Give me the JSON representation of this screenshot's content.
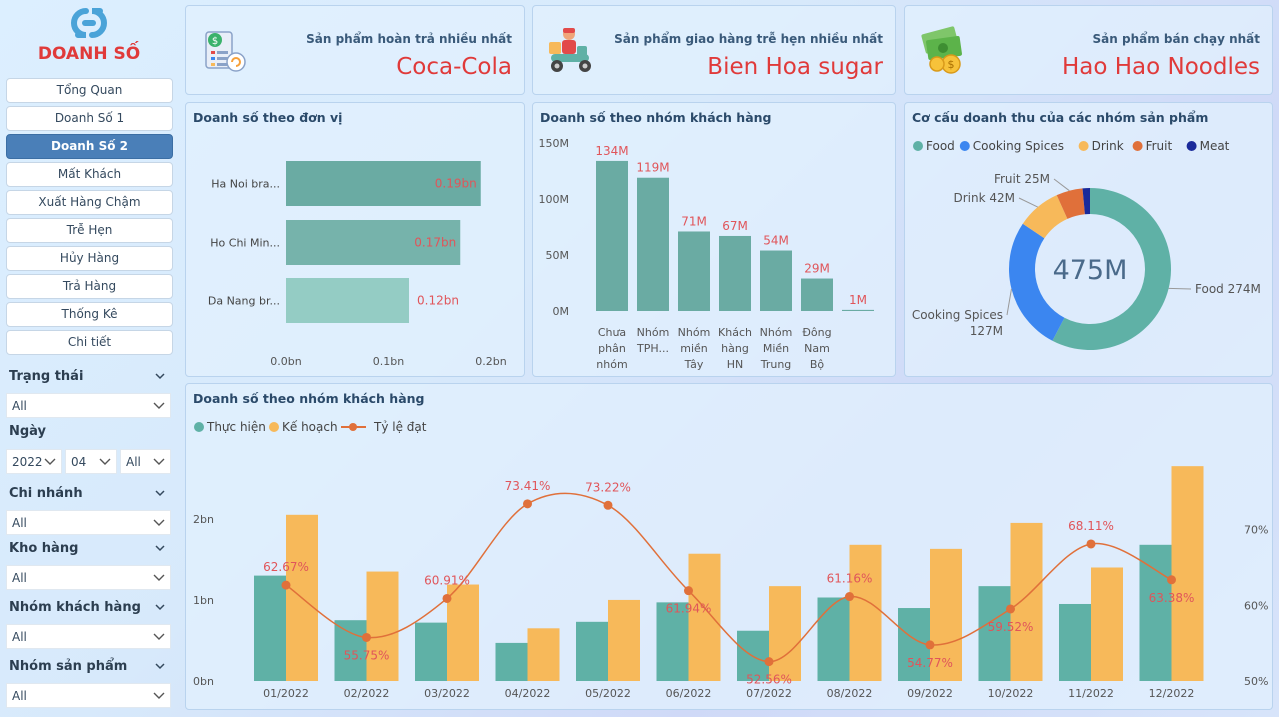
{
  "brand": "DOANH SỐ",
  "nav": [
    "Tổng Quan",
    "Doanh Số 1",
    "Doanh Số 2",
    "Mất Khách",
    "Xuất Hàng Chậm",
    "Trễ Hẹn",
    "Hủy Hàng",
    "Trả Hàng",
    "Thống Kê",
    "Chi tiết"
  ],
  "nav_active": 2,
  "filters": {
    "trang_thai": {
      "label": "Trạng thái",
      "value": "All"
    },
    "ngay": {
      "label": "Ngày",
      "year": "2022",
      "month": "04",
      "day": "All"
    },
    "chi_nhanh": {
      "label": "Chi nhánh",
      "value": "All"
    },
    "kho_hang": {
      "label": "Kho hàng",
      "value": "All"
    },
    "nhom_khach_hang": {
      "label": "Nhóm khách hàng",
      "value": "All"
    },
    "nhom_san_pham": {
      "label": "Nhóm sản phẩm",
      "value": "All"
    }
  },
  "kpis": [
    {
      "title": "Sản phẩm hoàn trả nhiều nhất",
      "value": "Coca-Cola",
      "icon": "return-document-icon"
    },
    {
      "title": "Sản phẩm giao hàng trễ hẹn nhiều nhất",
      "value": "Bien Hoa sugar",
      "icon": "delivery-scooter-icon"
    },
    {
      "title": "Sản phẩm bán chạy nhất",
      "value": "Hao Hao Noodles",
      "icon": "money-icon"
    }
  ],
  "colors": {
    "teal": "#5fb1a6",
    "orange": "#f7b95a",
    "line": "#e0703a",
    "red": "#e03a3a",
    "blue": "#3b86f0",
    "navy": "#1a2a9a"
  },
  "chart_data": [
    {
      "type": "bar",
      "orientation": "horizontal",
      "title": "Doanh số theo đơn vị",
      "categories": [
        "Ha Noi bra...",
        "Ho Chi Min...",
        "Da Nang br..."
      ],
      "values": [
        0.19,
        0.17,
        0.12
      ],
      "value_labels": [
        "0.19bn",
        "0.17bn",
        "0.12bn"
      ],
      "xticks": [
        "0.0bn",
        "0.1bn",
        "0.2bn"
      ],
      "xlim": [
        0,
        0.2
      ]
    },
    {
      "type": "bar",
      "title": "Doanh số theo nhóm khách hàng",
      "categories": [
        [
          "Chưa",
          "phân",
          "nhóm"
        ],
        [
          "Nhóm",
          "TPH..."
        ],
        [
          "Nhóm",
          "miền",
          "Tây"
        ],
        [
          "Khách",
          "hàng",
          "HN"
        ],
        [
          "Nhóm",
          "Miền",
          "Trung"
        ],
        [
          "Đông",
          "Nam",
          "Bộ"
        ],
        [
          ""
        ]
      ],
      "values": [
        134,
        119,
        71,
        67,
        54,
        29,
        1
      ],
      "value_labels": [
        "134M",
        "119M",
        "71M",
        "67M",
        "54M",
        "29M",
        "1M"
      ],
      "yticks": [
        "150M",
        "100M",
        "50M",
        "0M"
      ],
      "ylim": [
        0,
        150
      ]
    },
    {
      "type": "pie",
      "title": "Cơ cấu doanh thu của các nhóm sản phẩm",
      "center_label": "475M",
      "slices": [
        {
          "name": "Food",
          "value": 274,
          "label": "Food 274M",
          "color": "#5fb1a6"
        },
        {
          "name": "Cooking Spices",
          "value": 127,
          "label": "Cooking Spices 127M",
          "color": "#3b86f0"
        },
        {
          "name": "Drink",
          "value": 42,
          "label": "Drink 42M",
          "color": "#f7b95a"
        },
        {
          "name": "Fruit",
          "value": 25,
          "label": "Fruit 25M",
          "color": "#e0703a"
        },
        {
          "name": "Meat",
          "value": 7,
          "label": "",
          "color": "#1a2a9a"
        }
      ],
      "legend": "top"
    },
    {
      "type": "bar",
      "title": "Doanh số theo nhóm khách hàng",
      "categories": [
        "01/2022",
        "02/2022",
        "03/2022",
        "04/2022",
        "05/2022",
        "06/2022",
        "07/2022",
        "08/2022",
        "09/2022",
        "10/2022",
        "11/2022",
        "12/2022"
      ],
      "series": [
        {
          "name": "Thực hiện",
          "values": [
            1.3,
            0.75,
            0.72,
            0.47,
            0.73,
            0.97,
            0.62,
            1.03,
            0.9,
            1.17,
            0.95,
            1.68
          ]
        },
        {
          "name": "Kế hoạch",
          "values": [
            2.05,
            1.35,
            1.19,
            0.65,
            1.0,
            1.57,
            1.17,
            1.68,
            1.63,
            1.95,
            1.4,
            2.65
          ]
        },
        {
          "name": "Tỷ lệ đạt",
          "values": [
            62.67,
            55.75,
            60.91,
            73.41,
            73.22,
            61.94,
            52.56,
            61.16,
            54.77,
            59.52,
            68.11,
            63.38
          ]
        }
      ],
      "rate_labels": [
        "62.67%",
        "55.75%",
        "60.91%",
        "73.41%",
        "73.22%",
        "61.94%",
        "52.56%",
        "61.16%",
        "54.77%",
        "59.52%",
        "68.11%",
        "63.38%"
      ],
      "yticks_left": [
        "2bn",
        "1bn",
        "0bn"
      ],
      "ylim_left": [
        0,
        2.8
      ],
      "yticks_right": [
        "70%",
        "60%",
        "50%"
      ],
      "ylim_right": [
        50,
        80
      ],
      "legend": "top-left"
    }
  ]
}
